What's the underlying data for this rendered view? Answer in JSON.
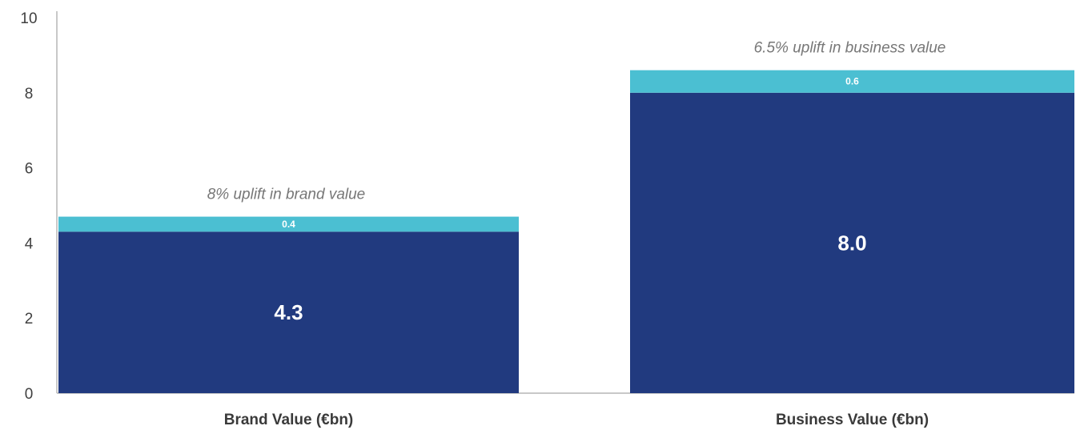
{
  "chart_data": {
    "type": "bar",
    "stacked": true,
    "categories": [
      "Brand Value (€bn)",
      "Business Value (€bn)"
    ],
    "series": [
      {
        "values": [
          4.3,
          8.0
        ],
        "color": "#213A7F",
        "value_labels": [
          "4.3",
          "8.0"
        ]
      },
      {
        "values": [
          0.4,
          0.6
        ],
        "color": "#4BBFD2",
        "value_labels": [
          "0.4",
          "0.6"
        ]
      }
    ],
    "annotations": [
      "8% uplift in brand value",
      "6.5% uplift in business value"
    ],
    "yticks": [
      "0",
      "2",
      "4",
      "6",
      "8",
      "10"
    ],
    "ylim": [
      0,
      10
    ],
    "grid": false,
    "legend": "none"
  }
}
